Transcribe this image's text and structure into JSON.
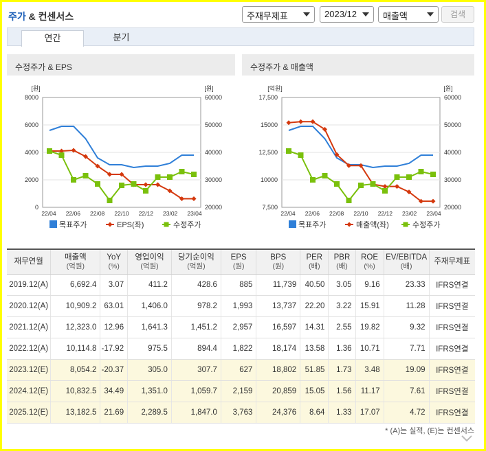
{
  "header": {
    "title_main": "주가",
    "title_rest": " & 컨센서스"
  },
  "controls": {
    "type_select": "주재무제표",
    "period_select": "2023/12",
    "metric_select": "매출액",
    "search_label": "검색"
  },
  "tabs": [
    {
      "label": "연간"
    },
    {
      "label": "분기"
    }
  ],
  "panels": [
    {
      "title": "수정주가 & EPS"
    },
    {
      "title": "수정주가 & 매출액"
    }
  ],
  "chart_data": [
    {
      "type": "line",
      "title": "수정주가 & EPS",
      "left_unit": "[원]",
      "right_unit": "[원]",
      "left_ticks": [
        "8000",
        "6000",
        "4000",
        "2000",
        "0"
      ],
      "right_ticks": [
        "60000",
        "50000",
        "40000",
        "30000",
        "20000"
      ],
      "y_left_range": [
        0,
        8000
      ],
      "y_right_range": [
        20000,
        60000
      ],
      "x_ticks": [
        "22/04",
        "22/06",
        "22/08",
        "22/10",
        "22/12",
        "23/02",
        "23/04"
      ],
      "legend_position": "bottom",
      "series": [
        {
          "name": "목표주가",
          "axis": "right",
          "color": "#2f7fd8",
          "values": [
            48000,
            49500,
            49500,
            45000,
            38000,
            35500,
            35500,
            34500,
            35000,
            35000,
            36000,
            39000,
            39000
          ]
        },
        {
          "name": "EPS(좌)",
          "axis": "left",
          "color": "#d4380d",
          "values": [
            4100,
            4100,
            4150,
            3700,
            3000,
            2400,
            2400,
            1650,
            1650,
            1650,
            1200,
            627,
            627
          ]
        },
        {
          "name": "수정주가",
          "axis": "right",
          "color": "#7ac00c",
          "values": [
            40500,
            39000,
            30000,
            31500,
            28500,
            22500,
            28000,
            28500,
            26000,
            31000,
            31000,
            33000,
            32000
          ]
        }
      ]
    },
    {
      "type": "line",
      "title": "수정주가 & 매출액",
      "left_unit": "[억원]",
      "right_unit": "[원]",
      "left_ticks": [
        "17,500",
        "15000",
        "12,500",
        "10000",
        "7,500"
      ],
      "right_ticks": [
        "60000",
        "50000",
        "40000",
        "30000",
        "20000"
      ],
      "y_left_range": [
        7500,
        17500
      ],
      "y_right_range": [
        20000,
        60000
      ],
      "x_ticks": [
        "22/04",
        "22/06",
        "22/08",
        "22/10",
        "22/12",
        "23/02",
        "23/04"
      ],
      "legend_position": "bottom",
      "series": [
        {
          "name": "목표주가",
          "axis": "right",
          "color": "#2f7fd8",
          "values": [
            48000,
            49500,
            49500,
            45000,
            38000,
            35500,
            35500,
            34500,
            35000,
            35000,
            36000,
            39000,
            39000
          ]
        },
        {
          "name": "매출액(좌)",
          "axis": "left",
          "color": "#d4380d",
          "values": [
            15200,
            15300,
            15300,
            14600,
            12300,
            11300,
            11300,
            9600,
            9400,
            9400,
            8900,
            8054,
            8054
          ]
        },
        {
          "name": "수정주가",
          "axis": "right",
          "color": "#7ac00c",
          "values": [
            40500,
            39000,
            30000,
            31500,
            28500,
            22500,
            28000,
            28500,
            26000,
            31000,
            31000,
            33000,
            32000
          ]
        }
      ]
    }
  ],
  "table": {
    "headers": [
      {
        "label": "재무연월",
        "sub": ""
      },
      {
        "label": "매출액",
        "sub": "(억원)"
      },
      {
        "label": "YoY",
        "sub": "(%)"
      },
      {
        "label": "영업이익",
        "sub": "(억원)"
      },
      {
        "label": "당기순이익",
        "sub": "(억원)"
      },
      {
        "label": "EPS",
        "sub": "(원)"
      },
      {
        "label": "BPS",
        "sub": "(원)"
      },
      {
        "label": "PER",
        "sub": "(배)"
      },
      {
        "label": "PBR",
        "sub": "(배)"
      },
      {
        "label": "ROE",
        "sub": "(%)"
      },
      {
        "label": "EV/EBITDA",
        "sub": "(배)"
      },
      {
        "label": "주재무제표",
        "sub": ""
      }
    ],
    "rows": [
      {
        "cells": [
          "2019.12(A)",
          "6,692.4",
          "3.07",
          "411.2",
          "428.6",
          "885",
          "11,739",
          "40.50",
          "3.05",
          "9.16",
          "23.33",
          "IFRS연결"
        ],
        "estimate": false
      },
      {
        "cells": [
          "2020.12(A)",
          "10,909.2",
          "63.01",
          "1,406.0",
          "978.2",
          "1,993",
          "13,737",
          "22.20",
          "3.22",
          "15.91",
          "11.28",
          "IFRS연결"
        ],
        "estimate": false
      },
      {
        "cells": [
          "2021.12(A)",
          "12,323.0",
          "12.96",
          "1,641.3",
          "1,451.2",
          "2,957",
          "16,597",
          "14.31",
          "2.55",
          "19.82",
          "9.32",
          "IFRS연결"
        ],
        "estimate": false
      },
      {
        "cells": [
          "2022.12(A)",
          "10,114.8",
          "-17.92",
          "975.5",
          "894.4",
          "1,822",
          "18,174",
          "13.58",
          "1.36",
          "10.71",
          "7.71",
          "IFRS연결"
        ],
        "estimate": false
      },
      {
        "cells": [
          "2023.12(E)",
          "8,054.2",
          "-20.37",
          "305.0",
          "307.7",
          "627",
          "18,802",
          "51.85",
          "1.73",
          "3.48",
          "19.09",
          "IFRS연결"
        ],
        "estimate": true
      },
      {
        "cells": [
          "2024.12(E)",
          "10,832.5",
          "34.49",
          "1,351.0",
          "1,059.7",
          "2,159",
          "20,859",
          "15.05",
          "1.56",
          "11.17",
          "7.61",
          "IFRS연결"
        ],
        "estimate": true
      },
      {
        "cells": [
          "2025.12(E)",
          "13,182.5",
          "21.69",
          "2,289.5",
          "1,847.0",
          "3,763",
          "24,376",
          "8.64",
          "1.33",
          "17.07",
          "4.72",
          "IFRS연결"
        ],
        "estimate": true
      }
    ]
  },
  "footnote": "* (A)는 실적, (E)는 컨센서스"
}
